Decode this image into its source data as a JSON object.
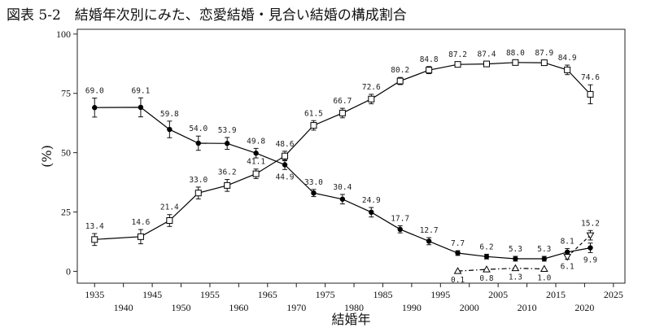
{
  "title": "図表 5-2　結婚年次別にみた、恋愛結婚・見合い結婚の構成割合",
  "chart_data": {
    "type": "line",
    "xlabel": "結婚年",
    "ylabel": "(%)",
    "xlim": [
      1932,
      2027
    ],
    "ylim": [
      -5,
      102
    ],
    "yticks": [
      0,
      25,
      50,
      75,
      100
    ],
    "xticks_upper": [
      1935,
      1945,
      1955,
      1965,
      1975,
      1985,
      1995,
      2005,
      2015,
      2025
    ],
    "xticks_lower": [
      1940,
      1950,
      1960,
      1970,
      1980,
      1990,
      2000,
      2010,
      2020
    ],
    "grid": false,
    "series": [
      {
        "marker": "filled-circle",
        "line": "solid",
        "color": "#000000",
        "points": [
          {
            "x": 1935,
            "y": 69.0,
            "label": "69.0",
            "err": 4
          },
          {
            "x": 1943,
            "y": 69.1,
            "label": "69.1",
            "err": 4
          },
          {
            "x": 1948,
            "y": 59.8,
            "label": "59.8",
            "err": 3.5
          },
          {
            "x": 1953,
            "y": 54.0,
            "label": "54.0",
            "err": 3
          },
          {
            "x": 1958,
            "y": 53.9,
            "label": "53.9",
            "err": 2.5
          },
          {
            "x": 1963,
            "y": 49.8,
            "label": "49.8",
            "err": 2
          },
          {
            "x": 1968,
            "y": 44.9,
            "label": "44.9",
            "err": 2
          },
          {
            "x": 1973,
            "y": 33.0,
            "label": "33.0",
            "err": 1.5
          },
          {
            "x": 1978,
            "y": 30.4,
            "label": "30.4",
            "err": 2
          },
          {
            "x": 1983,
            "y": 24.9,
            "label": "24.9",
            "err": 2
          },
          {
            "x": 1988,
            "y": 17.7,
            "label": "17.7",
            "err": 1.5
          },
          {
            "x": 1993,
            "y": 12.7,
            "label": "12.7",
            "err": 1.5
          },
          {
            "x": 1998,
            "y": 7.7,
            "label": "7.7",
            "err": 1
          },
          {
            "x": 2003,
            "y": 6.2,
            "label": "6.2",
            "err": 1
          },
          {
            "x": 2008,
            "y": 5.3,
            "label": "5.3",
            "err": 1
          },
          {
            "x": 2013,
            "y": 5.3,
            "label": "5.3",
            "err": 1
          },
          {
            "x": 2017,
            "y": 8.1,
            "label": "8.1",
            "err": 1.5
          },
          {
            "x": 2021,
            "y": 9.9,
            "label": "9.9",
            "err": 2
          }
        ]
      },
      {
        "marker": "open-square",
        "line": "solid",
        "color": "#000000",
        "points": [
          {
            "x": 1935,
            "y": 13.4,
            "label": "13.4",
            "err": 2.5
          },
          {
            "x": 1943,
            "y": 14.6,
            "label": "14.6",
            "err": 3
          },
          {
            "x": 1948,
            "y": 21.4,
            "label": "21.4",
            "err": 2.5
          },
          {
            "x": 1953,
            "y": 33.0,
            "label": "33.0",
            "err": 2.5
          },
          {
            "x": 1958,
            "y": 36.2,
            "label": "36.2",
            "err": 2.5
          },
          {
            "x": 1963,
            "y": 41.1,
            "label": "41.1",
            "err": 2
          },
          {
            "x": 1968,
            "y": 48.6,
            "label": "48.6",
            "err": 2
          },
          {
            "x": 1973,
            "y": 61.5,
            "label": "61.5",
            "err": 2
          },
          {
            "x": 1978,
            "y": 66.7,
            "label": "66.7",
            "err": 2
          },
          {
            "x": 1983,
            "y": 72.6,
            "label": "72.6",
            "err": 2
          },
          {
            "x": 1988,
            "y": 80.2,
            "label": "80.2",
            "err": 1.5
          },
          {
            "x": 1993,
            "y": 84.8,
            "label": "84.8",
            "err": 1.5
          },
          {
            "x": 1998,
            "y": 87.2,
            "label": "87.2",
            "err": 1
          },
          {
            "x": 2003,
            "y": 87.4,
            "label": "87.4",
            "err": 1
          },
          {
            "x": 2008,
            "y": 88.0,
            "label": "88.0",
            "err": 1
          },
          {
            "x": 2013,
            "y": 87.9,
            "label": "87.9",
            "err": 1
          },
          {
            "x": 2017,
            "y": 84.9,
            "label": "84.9",
            "err": 2
          },
          {
            "x": 2021,
            "y": 74.6,
            "label": "74.6",
            "err": 4
          }
        ]
      },
      {
        "marker": "open-triangle",
        "line": "dash-dot",
        "color": "#000000",
        "points": [
          {
            "x": 1998,
            "y": 0.1,
            "label": "0.1",
            "err": 0
          },
          {
            "x": 2003,
            "y": 0.8,
            "label": "0.8",
            "err": 0
          },
          {
            "x": 2008,
            "y": 1.3,
            "label": "1.3",
            "err": 0
          },
          {
            "x": 2013,
            "y": 1.0,
            "label": "1.0",
            "err": 0
          }
        ]
      },
      {
        "marker": "open-triangle-down",
        "line": "dashed",
        "color": "#000000",
        "points": [
          {
            "x": 2017,
            "y": 6.1,
            "label": "6.1",
            "err": 1
          },
          {
            "x": 2021,
            "y": 15.2,
            "label": "15.2",
            "err": 2
          }
        ]
      }
    ]
  }
}
